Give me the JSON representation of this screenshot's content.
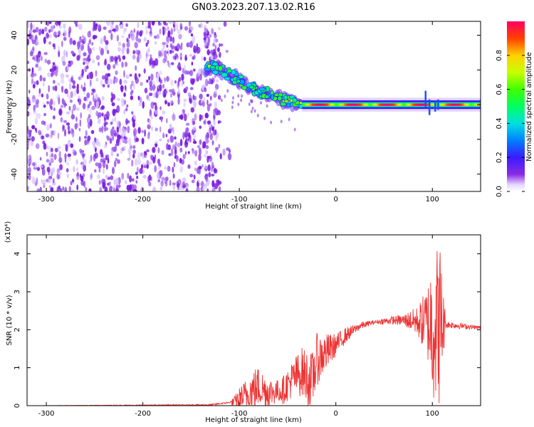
{
  "title": "GN03.2023.207.13.02.R16",
  "chart_data": [
    {
      "type": "heatmap",
      "xlabel": "Height of straight line (km)",
      "ylabel": "Frequency (Hz)",
      "xlim": [
        -320,
        150
      ],
      "ylim": [
        -50,
        48
      ],
      "x_ticks": [
        -300,
        -200,
        -100,
        0,
        100
      ],
      "y_ticks": [
        -40,
        -20,
        0,
        20,
        40
      ],
      "colorbar": {
        "label": "Normalized spectral amplitude",
        "range": [
          0,
          1
        ],
        "ticks": [
          0.0,
          0.2,
          0.4,
          0.6,
          0.8
        ],
        "tick_labels": [
          "0.0",
          "0.2",
          "0.4",
          "0.6",
          "0.8"
        ]
      },
      "features": {
        "noise_x_range": [
          -320,
          -120
        ],
        "ridge": [
          {
            "x": -135,
            "freq": 21,
            "amp": 0.55
          },
          {
            "x": -125,
            "freq": 22,
            "amp": 0.6
          },
          {
            "x": -110,
            "freq": 17,
            "amp": 0.45
          },
          {
            "x": -100,
            "freq": 14,
            "amp": 0.5
          },
          {
            "x": -90,
            "freq": 11,
            "amp": 0.5
          },
          {
            "x": -80,
            "freq": 8,
            "amp": 0.55
          },
          {
            "x": -70,
            "freq": 6,
            "amp": 0.5
          },
          {
            "x": -60,
            "freq": 4,
            "amp": 0.5
          },
          {
            "x": -50,
            "freq": 2,
            "amp": 0.55
          },
          {
            "x": -40,
            "freq": 0,
            "amp": 0.6
          }
        ],
        "carrier": {
          "freq": 0,
          "x_range": [
            -35,
            150
          ],
          "amp": 0.95
        }
      }
    },
    {
      "type": "line",
      "xlabel": "Height of straight line (km)",
      "ylabel": "SNR (10 * v/v)",
      "y_multiplier": "(x10⁴)",
      "xlim": [
        -320,
        150
      ],
      "ylim": [
        0,
        4.5
      ],
      "x_ticks": [
        -300,
        -200,
        -100,
        0,
        100
      ],
      "y_ticks": [
        0,
        1,
        2,
        3,
        4
      ],
      "color": "#ee3333",
      "profile": [
        {
          "x": -320,
          "y": 0.0
        },
        {
          "x": -130,
          "y": 0.02
        },
        {
          "x": -105,
          "y": 0.1
        },
        {
          "x": -95,
          "y": 0.25
        },
        {
          "x": -80,
          "y": 0.5
        },
        {
          "x": -70,
          "y": 0.35
        },
        {
          "x": -55,
          "y": 0.4
        },
        {
          "x": -45,
          "y": 0.7
        },
        {
          "x": -35,
          "y": 0.9
        },
        {
          "x": -25,
          "y": 0.6
        },
        {
          "x": -20,
          "y": 1.2
        },
        {
          "x": -10,
          "y": 1.4
        },
        {
          "x": 0,
          "y": 1.6
        },
        {
          "x": 10,
          "y": 1.85
        },
        {
          "x": 25,
          "y": 2.1
        },
        {
          "x": 40,
          "y": 2.2
        },
        {
          "x": 60,
          "y": 2.25
        },
        {
          "x": 75,
          "y": 2.25
        },
        {
          "x": 90,
          "y": 2.2
        },
        {
          "x": 110,
          "y": 2.15
        },
        {
          "x": 130,
          "y": 2.1
        },
        {
          "x": 150,
          "y": 2.05
        }
      ],
      "noise_amplitude": [
        {
          "x": -320,
          "a": 0.0
        },
        {
          "x": -110,
          "a": 0.02
        },
        {
          "x": -100,
          "a": 0.3
        },
        {
          "x": -85,
          "a": 0.6
        },
        {
          "x": -60,
          "a": 0.3
        },
        {
          "x": -45,
          "a": 0.5
        },
        {
          "x": -25,
          "a": 0.8
        },
        {
          "x": -10,
          "a": 0.5
        },
        {
          "x": 0,
          "a": 0.3
        },
        {
          "x": 20,
          "a": 0.12
        },
        {
          "x": 40,
          "a": 0.05
        },
        {
          "x": 70,
          "a": 0.15
        },
        {
          "x": 85,
          "a": 0.4
        },
        {
          "x": 95,
          "a": 1.0
        },
        {
          "x": 100,
          "a": 2.0
        },
        {
          "x": 108,
          "a": 2.2
        },
        {
          "x": 114,
          "a": 0.1
        },
        {
          "x": 150,
          "a": 0.05
        }
      ]
    }
  ]
}
